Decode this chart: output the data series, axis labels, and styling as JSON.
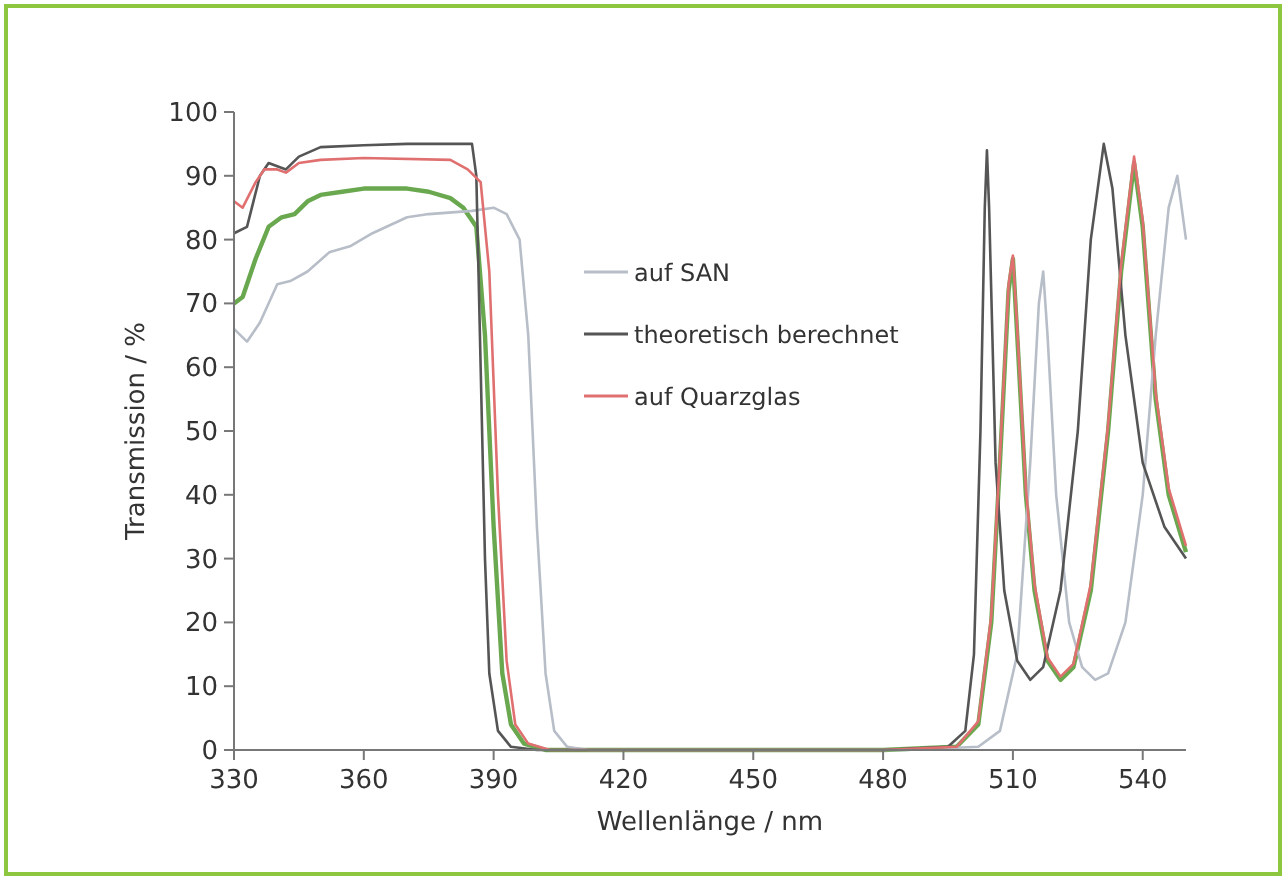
{
  "chart_data": {
    "type": "line",
    "xlabel": "Wellenlänge / nm",
    "ylabel": "Transmission / %",
    "xlim": [
      330,
      550
    ],
    "ylim": [
      0,
      100
    ],
    "xticks": [
      330,
      360,
      390,
      420,
      450,
      480,
      510,
      540
    ],
    "yticks": [
      0,
      10,
      20,
      30,
      40,
      50,
      60,
      70,
      80,
      90,
      100
    ],
    "grid": false,
    "legend": "right",
    "line_style": "solid",
    "series": [
      {
        "color": "#6aa84f",
        "x": [
          330,
          332,
          335,
          338,
          341,
          344,
          347,
          350,
          355,
          360,
          370,
          375,
          380,
          383,
          386,
          388,
          390,
          392,
          394,
          397,
          402,
          480,
          497,
          502,
          505,
          507,
          509,
          510,
          511,
          513,
          515,
          518,
          521,
          524,
          528,
          532,
          535,
          538,
          540,
          543,
          546,
          550
        ],
        "values": [
          70,
          71,
          77,
          82,
          83.5,
          84,
          86,
          87,
          87.5,
          88,
          88,
          87.5,
          86.5,
          85,
          82,
          65,
          35,
          12,
          4,
          1,
          0,
          0,
          0.5,
          4,
          20,
          45,
          72,
          77,
          65,
          40,
          25,
          14,
          11,
          13,
          25,
          50,
          75,
          92,
          82,
          55,
          40,
          31
        ]
      },
      {
        "name": "auf SAN",
        "color": "#b8bec8",
        "x": [
          330,
          333,
          336,
          340,
          343,
          347,
          352,
          357,
          362,
          370,
          375,
          385,
          390,
          393,
          396,
          398,
          400,
          402,
          404,
          407,
          412,
          485,
          502,
          507,
          511,
          514,
          516,
          517,
          518,
          520,
          523,
          526,
          529,
          532,
          536,
          540,
          543,
          546,
          548,
          550
        ],
        "values": [
          66,
          64,
          67,
          73,
          73.5,
          75,
          78,
          79,
          81,
          83.5,
          84,
          84.5,
          85,
          84,
          80,
          65,
          35,
          12,
          3,
          0.5,
          0,
          0,
          0.5,
          3,
          15,
          45,
          70,
          75,
          65,
          40,
          20,
          13,
          11,
          12,
          20,
          40,
          65,
          85,
          90,
          80
        ]
      },
      {
        "name": "theoretisch berechnet",
        "color": "#555555",
        "x": [
          330,
          333,
          336,
          338,
          340,
          342,
          345,
          350,
          360,
          370,
          380,
          385,
          386,
          387,
          388,
          389,
          391,
          394,
          400,
          480,
          495,
          499,
          501,
          502.5,
          503.5,
          504,
          504.5,
          506,
          508,
          511,
          514,
          517,
          521,
          525,
          528,
          531,
          533,
          536,
          540,
          545,
          550
        ],
        "values": [
          81,
          82,
          90,
          92,
          91.5,
          91,
          93,
          94.5,
          94.8,
          95,
          95,
          95,
          90,
          60,
          30,
          12,
          3,
          0.5,
          0,
          0,
          0.5,
          3,
          15,
          50,
          85,
          94,
          85,
          45,
          25,
          14,
          11,
          13,
          25,
          50,
          80,
          95,
          88,
          65,
          45,
          35,
          30
        ]
      },
      {
        "name": "auf Quarzglas",
        "color": "#e07070",
        "x": [
          330,
          332,
          335,
          337,
          340,
          342,
          345,
          350,
          360,
          380,
          384,
          387,
          389,
          391,
          393,
          395,
          398,
          403,
          480,
          497,
          502,
          505,
          507,
          509,
          510,
          511,
          513,
          515,
          518,
          521,
          524,
          528,
          532,
          535,
          538,
          540,
          543,
          546,
          550
        ],
        "values": [
          86,
          85,
          89,
          91,
          91,
          90.5,
          92,
          92.5,
          92.8,
          92.5,
          91,
          89,
          75,
          40,
          14,
          4,
          1,
          0,
          0,
          0.5,
          4.5,
          21,
          46,
          73,
          77.5,
          66,
          41,
          26,
          14.5,
          11.5,
          13.5,
          26,
          51,
          76,
          93,
          83,
          56,
          41,
          32
        ]
      }
    ]
  }
}
